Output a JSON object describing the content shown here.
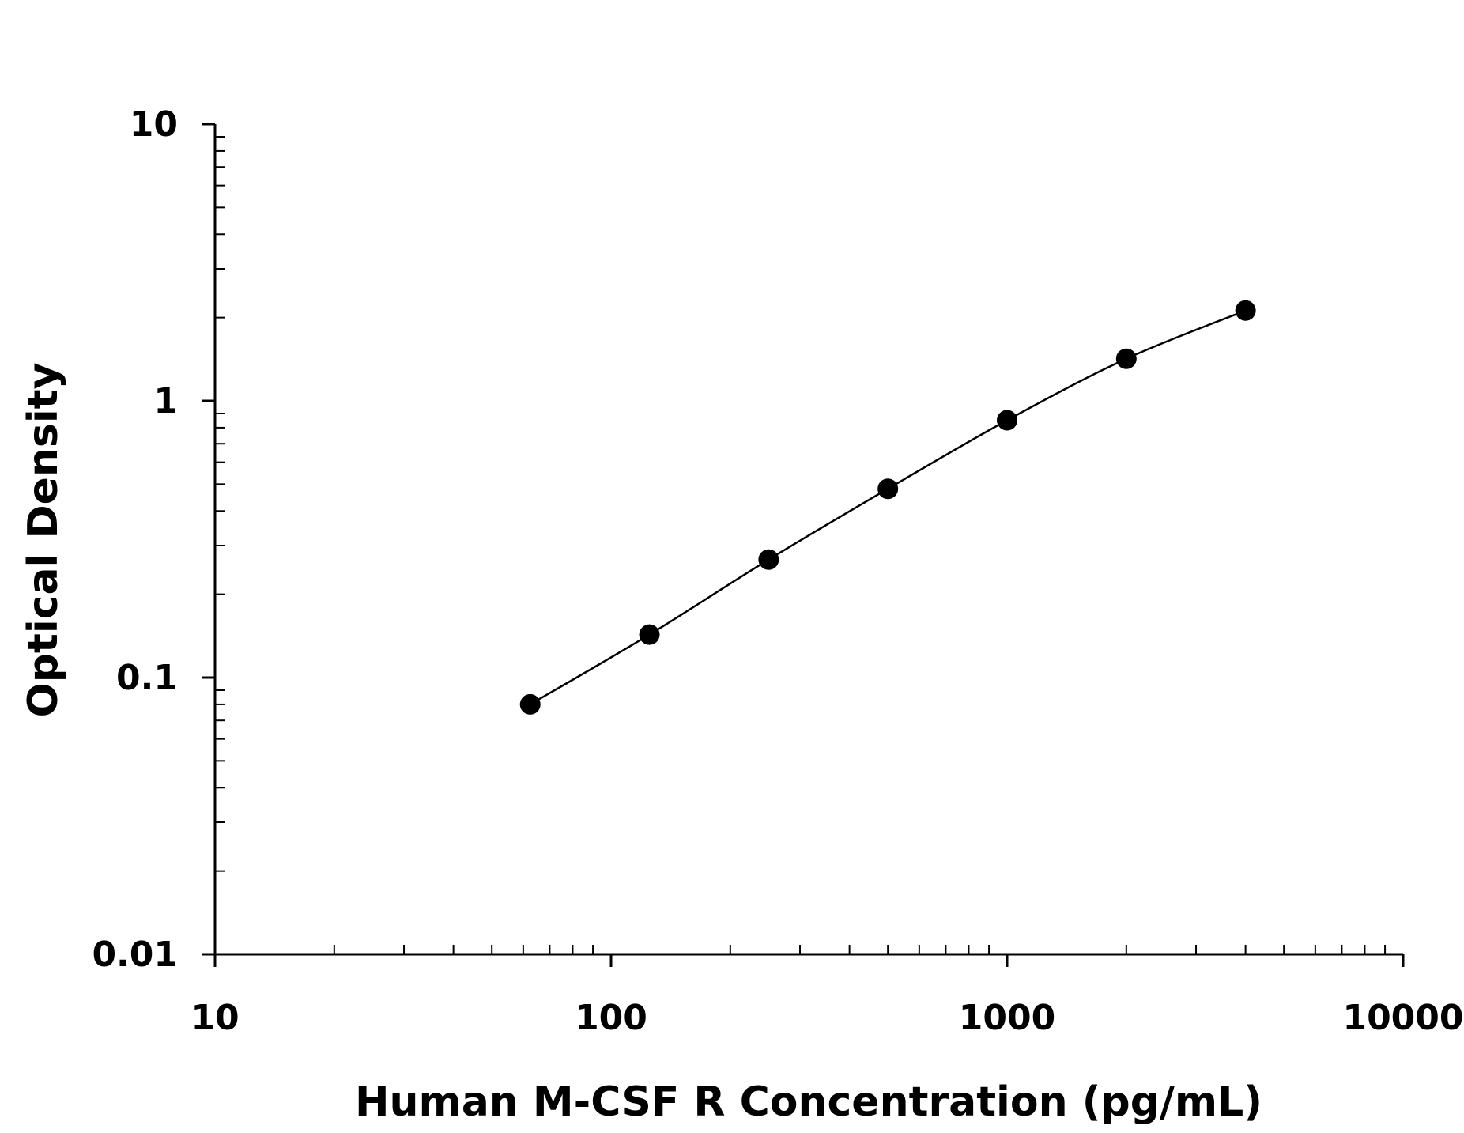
{
  "chart_data": {
    "type": "scatter",
    "xlabel": "Human M-CSF R Concentration (pg/mL)",
    "ylabel": "Optical Density",
    "x_scale": "log",
    "y_scale": "log",
    "xlim": [
      10,
      10000
    ],
    "ylim": [
      0.01,
      10
    ],
    "x_ticks": [
      "10",
      "100",
      "1000",
      "10000"
    ],
    "y_ticks": [
      "10",
      "1",
      "0.1",
      "0.01"
    ],
    "grid": false,
    "fit_curve": true,
    "marker_color": "#000000",
    "series": [
      {
        "points": [
          {
            "x": 62.5,
            "y": 0.08
          },
          {
            "x": 125,
            "y": 0.143
          },
          {
            "x": 250,
            "y": 0.267
          },
          {
            "x": 500,
            "y": 0.481
          },
          {
            "x": 1000,
            "y": 0.851
          },
          {
            "x": 2000,
            "y": 1.42
          },
          {
            "x": 4000,
            "y": 2.12
          }
        ]
      }
    ]
  }
}
